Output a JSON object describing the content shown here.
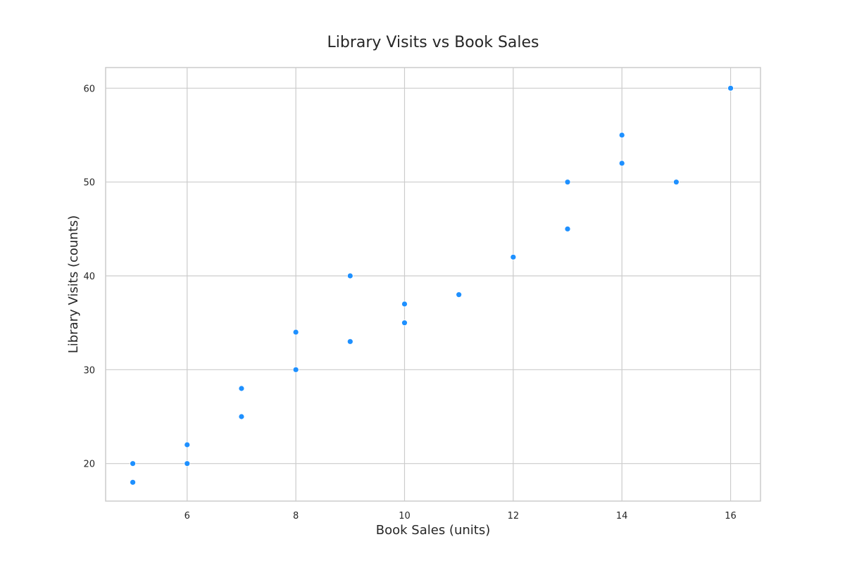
{
  "chart_data": {
    "type": "scatter",
    "title": "Library Visits vs Book Sales",
    "xlabel": "Book Sales (units)",
    "ylabel": "Library Visits (counts)",
    "xlim": [
      4.5,
      16.55
    ],
    "ylim": [
      16,
      62.2
    ],
    "xticks": [
      6,
      8,
      10,
      12,
      14,
      16
    ],
    "yticks": [
      20,
      30,
      40,
      50,
      60
    ],
    "grid": true,
    "point_color": "#1e90ff",
    "grid_color": "#cccccc",
    "series": [
      {
        "x": [
          5,
          5,
          6,
          6,
          7,
          7,
          8,
          8,
          9,
          9,
          10,
          10,
          11,
          12,
          13,
          13,
          14,
          14,
          15,
          16
        ],
        "y": [
          20,
          18,
          22,
          20,
          28,
          25,
          34,
          30,
          40,
          33,
          37,
          35,
          38,
          42,
          50,
          45,
          55,
          52,
          50,
          60
        ]
      }
    ]
  }
}
